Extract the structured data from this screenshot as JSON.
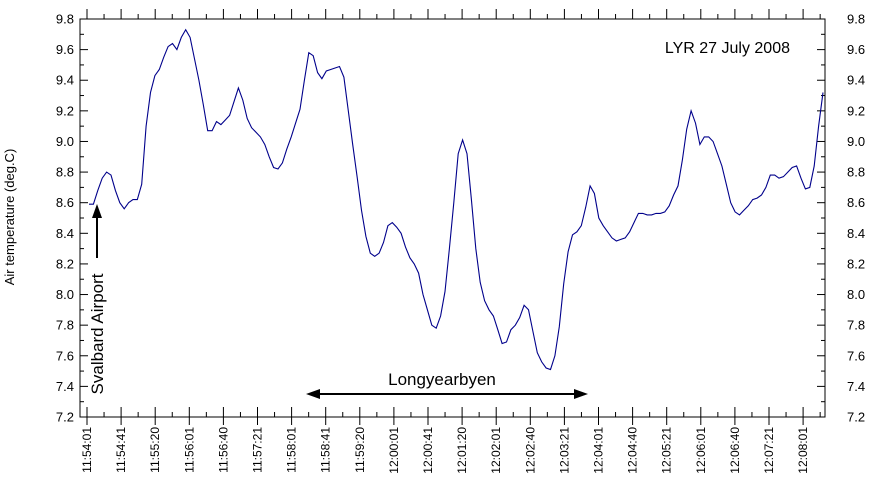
{
  "chart_data": {
    "type": "line",
    "title": "LYR 27 July 2008",
    "ylabel": "Air temperature (deg.C)",
    "xlabel": "",
    "ylim": [
      7.2,
      9.8
    ],
    "y_ticks": [
      7.2,
      7.4,
      7.6,
      7.8,
      8.0,
      8.2,
      8.4,
      8.6,
      8.8,
      9.0,
      9.2,
      9.4,
      9.6,
      9.8
    ],
    "y_tick_labels": [
      "7.2",
      "7.4",
      "7.6",
      "7.8",
      "8.0",
      "8.2",
      "8.4",
      "8.6",
      "8.8",
      "9.0",
      "9.2",
      "9.4",
      "9.6",
      "9.8"
    ],
    "x_ticks": [
      "11:54:01",
      "11:54:41",
      "11:55:20",
      "11:56:01",
      "11:56:40",
      "11:57:21",
      "11:58:01",
      "11:58:41",
      "11:59:20",
      "12:00:01",
      "12:00:41",
      "12:01:20",
      "12:02:01",
      "12:02:40",
      "12:03:21",
      "12:04:01",
      "12:04:40",
      "12:05:21",
      "12:06:01",
      "12:06:40",
      "12:07:21",
      "12:08:01"
    ],
    "grid": false,
    "line_color": "#00008b",
    "annotations": {
      "svalbard": "Svalbard Airport",
      "longyearbyen": "Longyearbyen"
    },
    "series": [
      {
        "values": [
          8.59,
          8.59,
          8.68,
          8.76,
          8.8,
          8.78,
          8.68,
          8.6,
          8.56,
          8.6,
          8.62,
          8.62,
          8.72,
          9.1,
          9.32,
          9.43,
          9.47,
          9.55,
          9.62,
          9.64,
          9.6,
          9.68,
          9.73,
          9.68,
          9.54,
          9.4,
          9.24,
          9.07,
          9.07,
          9.13,
          9.11,
          9.14,
          9.17,
          9.26,
          9.35,
          9.27,
          9.15,
          9.09,
          9.06,
          9.03,
          8.98,
          8.9,
          8.83,
          8.82,
          8.86,
          8.95,
          9.03,
          9.12,
          9.21,
          9.4,
          9.58,
          9.56,
          9.45,
          9.41,
          9.46,
          9.47,
          9.48,
          9.49,
          9.42,
          9.2,
          8.98,
          8.77,
          8.55,
          8.38,
          8.27,
          8.25,
          8.27,
          8.34,
          8.45,
          8.47,
          8.44,
          8.4,
          8.31,
          8.24,
          8.2,
          8.14,
          8.0,
          7.9,
          7.8,
          7.78,
          7.86,
          8.02,
          8.3,
          8.6,
          8.92,
          9.01,
          8.92,
          8.62,
          8.3,
          8.08,
          7.96,
          7.9,
          7.86,
          7.77,
          7.68,
          7.69,
          7.77,
          7.8,
          7.85,
          7.93,
          7.9,
          7.76,
          7.62,
          7.56,
          7.52,
          7.51,
          7.6,
          7.79,
          8.07,
          8.28,
          8.39,
          8.41,
          8.45,
          8.57,
          8.71,
          8.66,
          8.5,
          8.45,
          8.41,
          8.37,
          8.35,
          8.36,
          8.37,
          8.41,
          8.47,
          8.53,
          8.53,
          8.52,
          8.52,
          8.53,
          8.53,
          8.54,
          8.58,
          8.65,
          8.71,
          8.88,
          9.08,
          9.2,
          9.12,
          8.98,
          9.03,
          9.03,
          9.0,
          8.92,
          8.84,
          8.72,
          8.6,
          8.54,
          8.52,
          8.55,
          8.58,
          8.62,
          8.63,
          8.65,
          8.7,
          8.78,
          8.78,
          8.76,
          8.77,
          8.8,
          8.83,
          8.84,
          8.76,
          8.69,
          8.7,
          8.84,
          9.1,
          9.32
        ]
      }
    ]
  }
}
